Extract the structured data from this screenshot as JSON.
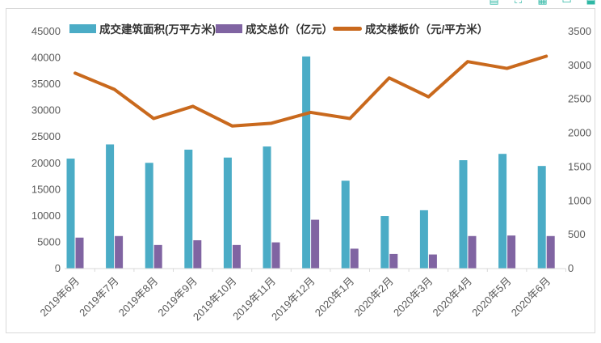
{
  "toolbox": {
    "icons": [
      {
        "name": "toolbox-icon-1",
        "glyph": "▤"
      },
      {
        "name": "toolbox-icon-2",
        "glyph": "⛶"
      },
      {
        "name": "toolbox-icon-3",
        "glyph": "▦"
      },
      {
        "name": "toolbox-icon-4",
        "glyph": "▭"
      },
      {
        "name": "toolbox-icon-5",
        "glyph": "⬓"
      }
    ]
  },
  "chart_data": {
    "type": "combo",
    "title": "",
    "grid": false,
    "legend_position": "top",
    "categories": [
      "2019年6月",
      "2019年7月",
      "2019年8月",
      "2019年9月",
      "2019年10月",
      "2019年11月",
      "2019年12月",
      "2020年1月",
      "2020年2月",
      "2020年3月",
      "2020年4月",
      "2020年5月",
      "2020年6月"
    ],
    "left_axis": {
      "min": 0,
      "max": 45000,
      "step": 5000
    },
    "right_axis": {
      "min": 0,
      "max": 3500,
      "step": 500
    },
    "series": [
      {
        "name": "成交建筑面积(万平方米)",
        "type": "bar",
        "axis": "left",
        "color": "#4bacc6",
        "values": [
          20800,
          23500,
          20000,
          22500,
          21000,
          23100,
          40200,
          16600,
          9900,
          11000,
          20500,
          21700,
          19400
        ]
      },
      {
        "name": "成交总价（亿元）",
        "type": "bar",
        "axis": "left",
        "color": "#8064a2",
        "values": [
          5800,
          6100,
          4400,
          5300,
          4400,
          4900,
          9200,
          3700,
          2700,
          2600,
          6100,
          6200,
          6100
        ]
      },
      {
        "name": "成交楼板价（元/平方米）",
        "type": "line",
        "axis": "right",
        "color": "#c9691d",
        "values": [
          2880,
          2640,
          2210,
          2390,
          2100,
          2140,
          2300,
          2210,
          2810,
          2530,
          3050,
          2950,
          3130
        ]
      }
    ],
    "colors": {
      "axis_line": "#d9d9d9",
      "tick_text": "#595959",
      "panel_border": "#d9d9d9",
      "toolbox": "#2fb8a5"
    }
  }
}
